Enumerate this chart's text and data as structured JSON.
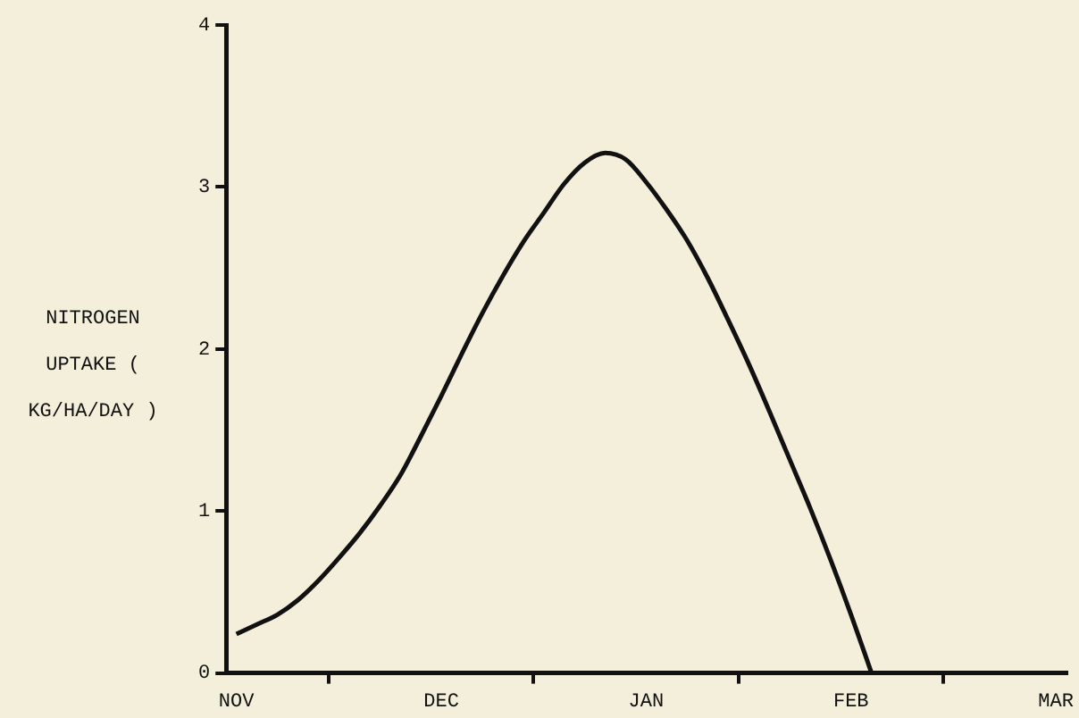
{
  "chart_data": {
    "type": "line",
    "ylabel": "NITROGEN UPTAKE ( KG/HA/DAY )",
    "categories": [
      "NOV",
      null,
      null,
      null,
      null,
      null,
      null,
      null,
      null,
      null,
      "DEC",
      null,
      null,
      null,
      null,
      null,
      null,
      null,
      null,
      null,
      "JAN",
      null,
      null,
      null,
      null,
      null,
      null,
      null,
      null,
      null,
      "FEB",
      null,
      null,
      null,
      null,
      null,
      null,
      null,
      null,
      null,
      "MAR"
    ],
    "series": [
      {
        "color": "#111111",
        "values": [
          0.24,
          0.3,
          0.36,
          0.45,
          0.57,
          0.71,
          0.86,
          1.03,
          1.22,
          1.46,
          1.71,
          1.97,
          2.22,
          2.45,
          2.66,
          2.84,
          3.02,
          3.15,
          3.21,
          3.17,
          3.03,
          2.86,
          2.67,
          2.44,
          2.18,
          1.91,
          1.62,
          1.32,
          1.02,
          0.7,
          0.36,
          0.0,
          null,
          null,
          null,
          null,
          null,
          null,
          null,
          null,
          null
        ]
      }
    ],
    "ylim": [
      0,
      4
    ],
    "yticks": [
      0,
      1,
      2,
      3,
      4
    ],
    "grid": false,
    "legend": false,
    "marker": "none",
    "line_style": "solid"
  }
}
